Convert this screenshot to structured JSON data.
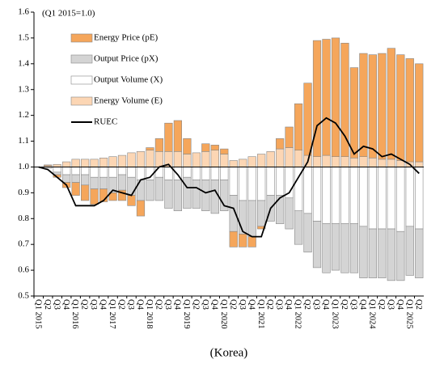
{
  "chart_data": {
    "type": "bar",
    "annotation": "(Q1 2015=1.0)",
    "x_label": "(Korea)",
    "categories": [
      "Q1 2015",
      "Q2",
      "Q3",
      "Q4",
      "Q1 2016",
      "Q2",
      "Q3",
      "Q4",
      "Q1 2017",
      "Q2",
      "Q3",
      "Q4",
      "Q1 2018",
      "Q2",
      "Q3",
      "Q4",
      "Q1 2019",
      "Q2",
      "Q3",
      "Q4",
      "Q1 2020",
      "Q2",
      "Q3",
      "Q4",
      "Q1 2021",
      "Q2",
      "Q3",
      "Q4",
      "Q1 2022",
      "Q2",
      "Q3",
      "Q4",
      "Q1 2023",
      "Q2",
      "Q3",
      "Q4",
      "Q1 2024",
      "Q2",
      "Q3",
      "Q4",
      "Q1 2025",
      "Q2"
    ],
    "baseline": 1,
    "ylim": [
      0.5,
      1.6
    ],
    "yticks": [
      0.5,
      0.6,
      0.7,
      0.8,
      0.9,
      {
        "value": 1,
        "label": "1.0"
      },
      1.1,
      1.2,
      1.3,
      1.4,
      1.5,
      1.6
    ],
    "series": [
      {
        "name": "Energy Price (pE)",
        "color": "#f5a65b",
        "values": [
          0,
          0.003,
          -0.01,
          -0.02,
          -0.05,
          -0.06,
          -0.06,
          -0.05,
          -0.03,
          -0.04,
          -0.04,
          -0.06,
          0.01,
          0.05,
          0.11,
          0.12,
          0.06,
          0,
          0.03,
          0.02,
          0.02,
          -0.06,
          -0.05,
          -0.04,
          -0.01,
          0,
          0.04,
          0.08,
          0.18,
          0.28,
          0.45,
          0.45,
          0.46,
          0.44,
          0.35,
          0.4,
          0.4,
          0.41,
          0.43,
          0.41,
          0.4,
          0.38
        ]
      },
      {
        "name": "Output Price (pX)",
        "color": "#d4d4d4",
        "values": [
          0,
          0,
          -0.01,
          -0.03,
          -0.03,
          -0.04,
          -0.045,
          -0.045,
          -0.06,
          -0.06,
          -0.07,
          -0.08,
          -0.08,
          -0.09,
          -0.11,
          -0.12,
          -0.12,
          -0.11,
          -0.12,
          -0.13,
          -0.12,
          -0.14,
          -0.13,
          -0.14,
          -0.1,
          -0.1,
          -0.11,
          -0.12,
          -0.13,
          -0.15,
          -0.18,
          -0.19,
          -0.18,
          -0.19,
          -0.19,
          -0.2,
          -0.19,
          -0.19,
          -0.2,
          -0.19,
          -0.19,
          -0.19
        ]
      },
      {
        "name": "Output Volume (X)",
        "color": "#ffffff",
        "values": [
          0,
          -0.005,
          -0.02,
          -0.03,
          -0.03,
          -0.03,
          -0.04,
          -0.04,
          -0.04,
          -0.03,
          -0.04,
          -0.05,
          -0.05,
          -0.04,
          -0.05,
          -0.05,
          -0.04,
          -0.05,
          -0.05,
          -0.05,
          -0.05,
          -0.11,
          -0.13,
          -0.13,
          -0.13,
          -0.11,
          -0.11,
          -0.12,
          -0.17,
          -0.18,
          -0.21,
          -0.22,
          -0.22,
          -0.22,
          -0.22,
          -0.23,
          -0.24,
          -0.24,
          -0.24,
          -0.25,
          -0.23,
          -0.24
        ]
      },
      {
        "name": "Energy Volume  (E)",
        "color": "#fcd6b4",
        "values": [
          0,
          0.005,
          0.01,
          0.02,
          0.03,
          0.03,
          0.03,
          0.035,
          0.04,
          0.045,
          0.055,
          0.06,
          0.065,
          0.06,
          0.06,
          0.06,
          0.05,
          0.055,
          0.06,
          0.065,
          0.05,
          0.025,
          0.03,
          0.04,
          0.05,
          0.06,
          0.07,
          0.075,
          0.065,
          0.045,
          0.04,
          0.045,
          0.04,
          0.04,
          0.035,
          0.04,
          0.035,
          0.03,
          0.03,
          0.025,
          0.02,
          0.02
        ]
      },
      {
        "name": "RUEC",
        "color": "#000000",
        "type": "line",
        "values": [
          1,
          0.99,
          0.96,
          0.93,
          0.85,
          0.85,
          0.85,
          0.87,
          0.91,
          0.9,
          0.89,
          0.95,
          0.96,
          1,
          1.01,
          0.97,
          0.92,
          0.92,
          0.9,
          0.91,
          0.85,
          0.84,
          0.75,
          0.73,
          0.73,
          0.84,
          0.88,
          0.9,
          0.96,
          1.02,
          1.16,
          1.19,
          1.17,
          1.12,
          1.05,
          1.08,
          1.07,
          1.04,
          1.05,
          1.03,
          1.01,
          0.975
        ]
      }
    ]
  }
}
